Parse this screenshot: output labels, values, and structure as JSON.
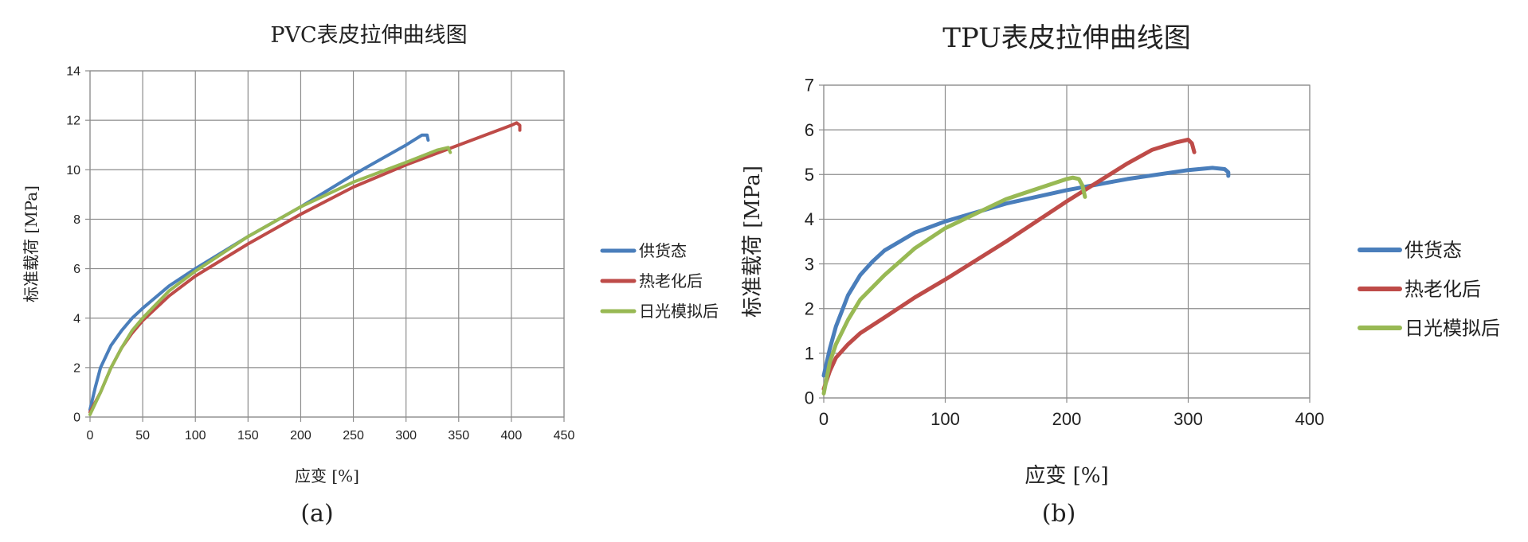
{
  "captions": {
    "a": "(a)",
    "b": "(b)"
  },
  "chart_data": [
    {
      "type": "line",
      "title": "PVC表皮拉伸曲线图",
      "xlabel": "应变 [%]",
      "ylabel": "标准载荷 [MPa]",
      "xlim": [
        0,
        450
      ],
      "ylim": [
        0,
        14
      ],
      "xticks": [
        0,
        50,
        100,
        150,
        200,
        250,
        300,
        350,
        400,
        450
      ],
      "yticks": [
        0,
        2,
        4,
        6,
        8,
        10,
        12,
        14
      ],
      "grid": true,
      "legend_position": "right",
      "series": [
        {
          "name": "供货态",
          "color": "#4a7ebb",
          "x": [
            0,
            5,
            10,
            20,
            30,
            40,
            50,
            75,
            100,
            150,
            200,
            250,
            300,
            315,
            320,
            321
          ],
          "y": [
            0.3,
            1.2,
            2.0,
            2.9,
            3.5,
            4.0,
            4.4,
            5.3,
            6.0,
            7.3,
            8.5,
            9.8,
            11.0,
            11.4,
            11.4,
            11.2
          ]
        },
        {
          "name": "热老化后",
          "color": "#be4b48",
          "x": [
            0,
            10,
            20,
            30,
            40,
            50,
            75,
            100,
            150,
            200,
            250,
            300,
            350,
            400,
            405,
            408,
            408
          ],
          "y": [
            0.2,
            1.0,
            2.0,
            2.8,
            3.4,
            3.9,
            4.9,
            5.7,
            7.0,
            8.2,
            9.3,
            10.2,
            11.0,
            11.8,
            11.9,
            11.8,
            11.6
          ]
        },
        {
          "name": "日光模拟后",
          "color": "#98b954",
          "x": [
            0,
            10,
            20,
            30,
            40,
            50,
            75,
            100,
            150,
            200,
            250,
            300,
            330,
            340,
            342
          ],
          "y": [
            0.1,
            1.0,
            2.0,
            2.8,
            3.5,
            4.0,
            5.1,
            5.9,
            7.3,
            8.5,
            9.5,
            10.3,
            10.8,
            10.9,
            10.7
          ]
        }
      ]
    },
    {
      "type": "line",
      "title": "TPU表皮拉伸曲线图",
      "xlabel": "应变 [%]",
      "ylabel": "标准载荷 [MPa]",
      "xlim": [
        0,
        400
      ],
      "ylim": [
        0,
        7
      ],
      "xticks": [
        0,
        100,
        200,
        300,
        400
      ],
      "yticks": [
        0,
        1,
        2,
        3,
        4,
        5,
        6,
        7
      ],
      "grid": true,
      "legend_position": "right",
      "series": [
        {
          "name": "供货态",
          "color": "#4a7ebb",
          "x": [
            0,
            5,
            10,
            20,
            30,
            40,
            50,
            75,
            100,
            150,
            200,
            250,
            300,
            320,
            330,
            333,
            333
          ],
          "y": [
            0.5,
            1.1,
            1.6,
            2.3,
            2.75,
            3.05,
            3.3,
            3.7,
            3.95,
            4.35,
            4.65,
            4.9,
            5.1,
            5.15,
            5.12,
            5.05,
            4.97
          ]
        },
        {
          "name": "热老化后",
          "color": "#be4b48",
          "x": [
            0,
            5,
            10,
            20,
            30,
            50,
            75,
            100,
            150,
            200,
            250,
            270,
            290,
            300,
            303,
            305
          ],
          "y": [
            0.2,
            0.6,
            0.9,
            1.2,
            1.45,
            1.8,
            2.25,
            2.65,
            3.5,
            4.4,
            5.25,
            5.55,
            5.72,
            5.78,
            5.7,
            5.5
          ]
        },
        {
          "name": "日光模拟后",
          "color": "#98b954",
          "x": [
            0,
            5,
            10,
            20,
            30,
            50,
            75,
            100,
            150,
            200,
            205,
            210,
            213,
            215
          ],
          "y": [
            0.1,
            0.8,
            1.2,
            1.75,
            2.2,
            2.75,
            3.35,
            3.8,
            4.45,
            4.9,
            4.93,
            4.9,
            4.75,
            4.5
          ]
        }
      ]
    }
  ]
}
